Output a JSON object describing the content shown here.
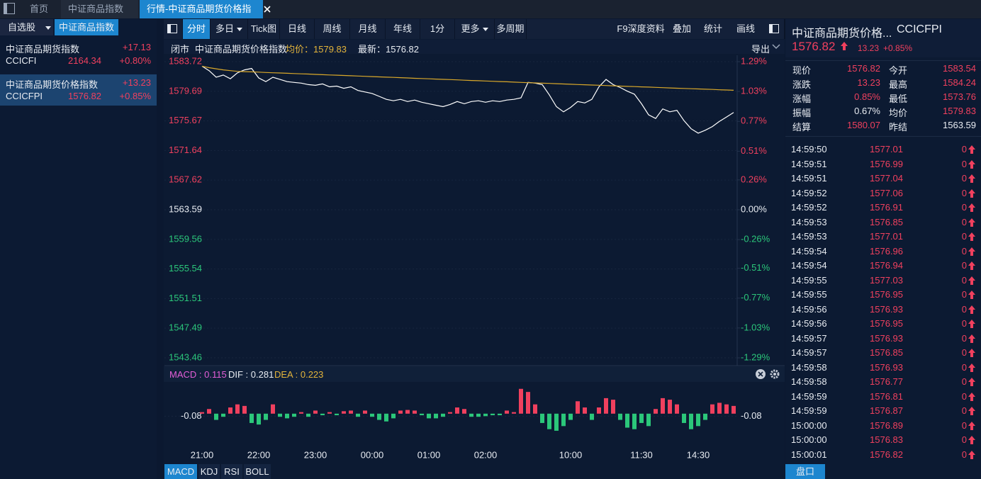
{
  "tabs": [
    "首页",
    "中证商品指数",
    "行情-中证商品期货价格指数"
  ],
  "sidebar": {
    "tabs": [
      "自选股",
      "中证商品指数"
    ],
    "items": [
      {
        "name": "中证商品期货指数",
        "change": "+17.13",
        "code": "CCICFI",
        "price": "2164.34",
        "pct": "+0.80%"
      },
      {
        "name": "中证商品期货价格指数",
        "change": "+13.23",
        "code": "CCICFPI",
        "price": "1576.82",
        "pct": "+0.85%"
      }
    ]
  },
  "toolbar": {
    "left": [
      "分时",
      "多日",
      "Tick图",
      "日线",
      "周线",
      "月线",
      "年线",
      "1分",
      "更多",
      "多周期"
    ],
    "right": [
      "F9深度资料",
      "叠加",
      "统计",
      "画线"
    ]
  },
  "chart_header": {
    "status": "闭市",
    "name": "中证商品期货价格指数",
    "avg_label": "均价：1579.83",
    "last_label": "最新：1576.82",
    "export": "导出"
  },
  "chart_data": [
    {
      "type": "line",
      "categories": [
        "21:00",
        null,
        null,
        null,
        null,
        null,
        null,
        null,
        "22:00",
        null,
        null,
        null,
        null,
        null,
        null,
        null,
        "23:00",
        null,
        null,
        null,
        null,
        null,
        null,
        null,
        "00:00",
        null,
        null,
        null,
        null,
        null,
        null,
        null,
        "01:00",
        null,
        null,
        null,
        null,
        null,
        null,
        null,
        "02:00",
        null,
        null,
        null,
        null,
        null,
        null,
        null,
        null,
        null,
        null,
        null,
        "10:00",
        null,
        null,
        null,
        null,
        null,
        null,
        null,
        null,
        null,
        "11:30",
        null,
        null,
        null,
        null,
        null,
        null,
        null,
        "14:30",
        null,
        null,
        null,
        null,
        null
      ],
      "series": [
        {
          "color": "#ffffff",
          "values": [
            1583.1,
            1582.5,
            1581.6,
            1581.9,
            1581.4,
            1582.2,
            1582.6,
            1582.8,
            1581.5,
            1581.0,
            1581.6,
            1581.3,
            1581.0,
            1580.9,
            1580.8,
            1580.6,
            1580.5,
            1580.7,
            1580.3,
            1580.4,
            1580.1,
            1580.3,
            1579.8,
            1579.6,
            1579.4,
            1579.0,
            1578.6,
            1578.4,
            1578.6,
            1578.3,
            1578.5,
            1578.2,
            1578.0,
            1577.8,
            1577.6,
            1577.9,
            1578.3,
            1578.0,
            1578.3,
            1578.4,
            1578.2,
            1578.4,
            1578.3,
            1578.5,
            1578.6,
            1578.8,
            1580.9,
            1580.8,
            1580.6,
            1579.2,
            1577.6,
            1576.9,
            1577.5,
            1578.3,
            1578.1,
            1578.6,
            1580.3,
            1581.3,
            1580.6,
            1580.2,
            1579.7,
            1579.3,
            1578.0,
            1576.5,
            1576.0,
            1577.3,
            1576.9,
            1577.1,
            1575.7,
            1574.6,
            1574.0,
            1574.4,
            1574.9,
            1575.6,
            1576.2,
            1576.8
          ]
        },
        {
          "color": "#d9a82a",
          "values": [
            1583.1,
            1582.9,
            1582.75,
            1582.6,
            1582.5,
            1582.4,
            1582.36,
            1582.33,
            1582.29,
            1582.25,
            1582.21,
            1582.18,
            1582.14,
            1582.1,
            1582.06,
            1582.03,
            1581.99,
            1581.95,
            1581.91,
            1581.88,
            1581.84,
            1581.8,
            1581.76,
            1581.73,
            1581.69,
            1581.65,
            1581.61,
            1581.58,
            1581.54,
            1581.5,
            1581.46,
            1581.43,
            1581.39,
            1581.35,
            1581.31,
            1581.28,
            1581.24,
            1581.2,
            1581.16,
            1581.13,
            1581.09,
            1581.05,
            1581.01,
            1580.98,
            1580.94,
            1580.9,
            1580.86,
            1580.83,
            1580.79,
            1580.76,
            1580.72,
            1580.69,
            1580.65,
            1580.61,
            1580.58,
            1580.54,
            1580.51,
            1580.47,
            1580.44,
            1580.4,
            1580.36,
            1580.33,
            1580.29,
            1580.26,
            1580.22,
            1580.19,
            1580.15,
            1580.11,
            1580.08,
            1580.04,
            1580.01,
            1579.97,
            1579.94,
            1579.9,
            1579.87,
            1579.83
          ]
        }
      ],
      "ylim": [
        1543.46,
        1583.72
      ],
      "yticks": [
        1583.72,
        1579.69,
        1575.67,
        1571.64,
        1567.62,
        1563.59,
        1559.56,
        1555.54,
        1551.51,
        1547.49,
        1543.46
      ],
      "y2lim": [
        -1.29,
        1.29
      ],
      "y2ticks": [
        {
          "value": 1.29,
          "label": "1.29%"
        },
        {
          "value": 1.03,
          "label": "1.03%"
        },
        {
          "value": 0.77,
          "label": "0.77%"
        },
        {
          "value": 0.51,
          "label": "0.51%"
        },
        {
          "value": 0.26,
          "label": "0.26%"
        },
        {
          "value": 0,
          "label": "0.00%"
        },
        {
          "value": -0.26,
          "label": "-0.26%"
        },
        {
          "value": -0.51,
          "label": "-0.51%"
        },
        {
          "value": -0.77,
          "label": "-0.77%"
        },
        {
          "value": -1.03,
          "label": "-1.03%"
        },
        {
          "value": -1.29,
          "label": "-1.29%"
        }
      ],
      "grid": true,
      "up_color": "#f0405e",
      "down_color": "#2bc77a"
    },
    {
      "type": "bar",
      "legend_labels": [
        "MACD : 0.115",
        "DIF : 0.281",
        "DEA : 0.223"
      ],
      "categories": [
        "21:00",
        null,
        null,
        null,
        null,
        null,
        null,
        null,
        "22:00",
        null,
        null,
        null,
        null,
        null,
        null,
        null,
        "23:00",
        null,
        null,
        null,
        null,
        null,
        null,
        null,
        "00:00",
        null,
        null,
        null,
        null,
        null,
        null,
        null,
        "01:00",
        null,
        null,
        null,
        null,
        null,
        null,
        null,
        "02:00",
        null,
        null,
        null,
        null,
        null,
        null,
        null,
        null,
        null,
        null,
        null,
        "10:00",
        null,
        null,
        null,
        null,
        null,
        null,
        null,
        null,
        null,
        "11:30",
        null,
        null,
        null,
        null,
        null,
        null,
        null,
        "14:30",
        null,
        null,
        null,
        null,
        null
      ],
      "values": [
        0.05,
        0.15,
        -0.2,
        -0.1,
        0.2,
        0.3,
        0.25,
        -0.3,
        -0.35,
        -0.2,
        0.3,
        -0.1,
        -0.15,
        -0.1,
        0.05,
        -0.1,
        0.1,
        -0.05,
        0.05,
        -0.05,
        0.08,
        0.1,
        -0.1,
        0.1,
        -0.1,
        -0.2,
        -0.25,
        -0.15,
        0.1,
        0.12,
        0.1,
        -0.05,
        -0.15,
        -0.15,
        -0.1,
        0.05,
        0.2,
        0.15,
        -0.1,
        -0.1,
        -0.08,
        -0.05,
        -0.05,
        0.1,
        0.05,
        0.8,
        0.7,
        0.3,
        -0.3,
        -0.5,
        -0.55,
        -0.4,
        -0.2,
        0.4,
        0.2,
        -0.2,
        0.2,
        0.5,
        0.45,
        -0.2,
        -0.45,
        -0.5,
        -0.3,
        -0.4,
        0.15,
        0.5,
        0.45,
        0.3,
        -0.3,
        -0.5,
        -0.4,
        -0.2,
        0.3,
        0.35,
        0.3,
        0.25
      ],
      "ylim": [
        -1.1,
        1.0
      ],
      "yticks": [
        -0.08
      ],
      "up_color": "#f0405e",
      "down_color": "#2bc77a"
    }
  ],
  "quote": {
    "title": "中证商品期货价格...",
    "code": "CCICFPI",
    "price": "1576.82",
    "change": "13.23",
    "pct": "+0.85%",
    "rows": [
      [
        "现价",
        "1576.82",
        "今开",
        "1583.54"
      ],
      [
        "涨跌",
        "13.23",
        "最高",
        "1584.24"
      ],
      [
        "涨幅",
        "0.85%",
        "最低",
        "1573.76"
      ],
      [
        "振幅",
        "0.67%",
        "均价",
        "1579.83"
      ],
      [
        "结算",
        "1580.07",
        "昨结",
        "1563.59"
      ]
    ]
  },
  "ticks": [
    [
      "14:59:50",
      "1577.01",
      "0"
    ],
    [
      "14:59:51",
      "1576.99",
      "0"
    ],
    [
      "14:59:51",
      "1577.04",
      "0"
    ],
    [
      "14:59:52",
      "1577.06",
      "0"
    ],
    [
      "14:59:52",
      "1576.91",
      "0"
    ],
    [
      "14:59:53",
      "1576.85",
      "0"
    ],
    [
      "14:59:53",
      "1577.01",
      "0"
    ],
    [
      "14:59:54",
      "1576.96",
      "0"
    ],
    [
      "14:59:54",
      "1576.94",
      "0"
    ],
    [
      "14:59:55",
      "1577.03",
      "0"
    ],
    [
      "14:59:55",
      "1576.95",
      "0"
    ],
    [
      "14:59:56",
      "1576.93",
      "0"
    ],
    [
      "14:59:56",
      "1576.95",
      "0"
    ],
    [
      "14:59:57",
      "1576.93",
      "0"
    ],
    [
      "14:59:57",
      "1576.85",
      "0"
    ],
    [
      "14:59:58",
      "1576.93",
      "0"
    ],
    [
      "14:59:58",
      "1576.77",
      "0"
    ],
    [
      "14:59:59",
      "1576.81",
      "0"
    ],
    [
      "14:59:59",
      "1576.87",
      "0"
    ],
    [
      "15:00:00",
      "1576.89",
      "0"
    ],
    [
      "15:00:00",
      "1576.83",
      "0"
    ],
    [
      "15:00:01",
      "1576.82",
      "0"
    ]
  ],
  "bottom_tabs": [
    "MACD",
    "KDJ",
    "RSI",
    "BOLL"
  ],
  "panel_button": "盘口"
}
